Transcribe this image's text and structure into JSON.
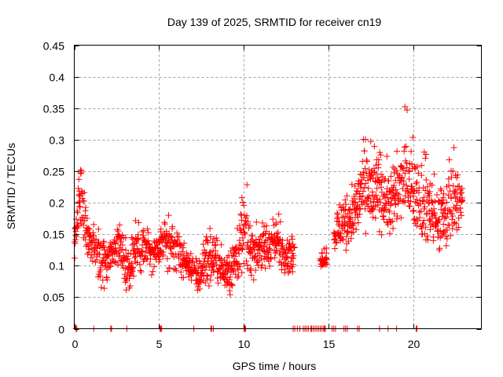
{
  "chart_data": {
    "type": "scatter",
    "title": "Day 139 of 2025, SRMTID for receiver cn19",
    "xlabel": "GPS time / hours",
    "ylabel": "SRMTID / TECUs",
    "xlim": [
      0,
      24
    ],
    "ylim": [
      0,
      0.45
    ],
    "xticks": [
      0,
      5,
      10,
      15,
      20
    ],
    "xtick_labels": [
      "0",
      "5",
      "10",
      "15",
      "20"
    ],
    "yticks": [
      0,
      0.05,
      0.1,
      0.15,
      0.2,
      0.25,
      0.3,
      0.35,
      0.4,
      0.45
    ],
    "ytick_labels": [
      "0",
      "0.05",
      "0.1",
      "0.15",
      "0.2",
      "0.25",
      "0.3",
      "0.35",
      "0.4",
      "0.45"
    ],
    "grid": true,
    "marker": "+",
    "color": "#ff0000",
    "series": [
      {
        "name": "SRMTID",
        "envelope": [
          {
            "x": 0.0,
            "lo": 0.1,
            "hi": 0.16,
            "peak": 0.13
          },
          {
            "x": 0.3,
            "lo": 0.12,
            "hi": 0.3,
            "peak": 0.22
          },
          {
            "x": 0.7,
            "lo": 0.09,
            "hi": 0.2,
            "peak": 0.15
          },
          {
            "x": 1.2,
            "lo": 0.08,
            "hi": 0.17,
            "peak": 0.13
          },
          {
            "x": 1.7,
            "lo": 0.05,
            "hi": 0.16,
            "peak": 0.11
          },
          {
            "x": 2.2,
            "lo": 0.07,
            "hi": 0.16,
            "peak": 0.12
          },
          {
            "x": 2.6,
            "lo": 0.08,
            "hi": 0.2,
            "peak": 0.14
          },
          {
            "x": 3.1,
            "lo": 0.04,
            "hi": 0.14,
            "peak": 0.1
          },
          {
            "x": 3.6,
            "lo": 0.07,
            "hi": 0.19,
            "peak": 0.13
          },
          {
            "x": 4.2,
            "lo": 0.08,
            "hi": 0.19,
            "peak": 0.13
          },
          {
            "x": 4.7,
            "lo": 0.06,
            "hi": 0.15,
            "peak": 0.11
          },
          {
            "x": 5.2,
            "lo": 0.09,
            "hi": 0.19,
            "peak": 0.14
          },
          {
            "x": 5.7,
            "lo": 0.08,
            "hi": 0.2,
            "peak": 0.14
          },
          {
            "x": 6.2,
            "lo": 0.07,
            "hi": 0.16,
            "peak": 0.12
          },
          {
            "x": 6.7,
            "lo": 0.08,
            "hi": 0.13,
            "peak": 0.1
          },
          {
            "x": 7.3,
            "lo": 0.04,
            "hi": 0.12,
            "peak": 0.08
          },
          {
            "x": 7.8,
            "lo": 0.06,
            "hi": 0.18,
            "peak": 0.11
          },
          {
            "x": 8.3,
            "lo": 0.06,
            "hi": 0.16,
            "peak": 0.11
          },
          {
            "x": 8.8,
            "lo": 0.04,
            "hi": 0.14,
            "peak": 0.09
          },
          {
            "x": 9.3,
            "lo": 0.03,
            "hi": 0.16,
            "peak": 0.1
          },
          {
            "x": 9.7,
            "lo": 0.06,
            "hi": 0.2,
            "peak": 0.12
          },
          {
            "x": 10.0,
            "lo": 0.08,
            "hi": 0.27,
            "peak": 0.15
          },
          {
            "x": 10.5,
            "lo": 0.06,
            "hi": 0.17,
            "peak": 0.12
          },
          {
            "x": 11.0,
            "lo": 0.07,
            "hi": 0.2,
            "peak": 0.13
          },
          {
            "x": 11.5,
            "lo": 0.08,
            "hi": 0.18,
            "peak": 0.13
          },
          {
            "x": 12.0,
            "lo": 0.09,
            "hi": 0.2,
            "peak": 0.14
          },
          {
            "x": 12.4,
            "lo": 0.07,
            "hi": 0.16,
            "peak": 0.12
          },
          {
            "x": 12.9,
            "lo": 0.08,
            "hi": 0.15,
            "peak": 0.12
          },
          {
            "x": 13.5,
            "lo": 0.1,
            "hi": 0.14,
            "peak": 0.12
          },
          {
            "x": 14.8,
            "lo": 0.09,
            "hi": 0.14,
            "peak": 0.11
          },
          {
            "x": 15.5,
            "lo": 0.11,
            "hi": 0.21,
            "peak": 0.16
          },
          {
            "x": 16.0,
            "lo": 0.11,
            "hi": 0.24,
            "peak": 0.17
          },
          {
            "x": 16.6,
            "lo": 0.13,
            "hi": 0.26,
            "peak": 0.19
          },
          {
            "x": 17.1,
            "lo": 0.15,
            "hi": 0.34,
            "peak": 0.23
          },
          {
            "x": 17.6,
            "lo": 0.11,
            "hi": 0.3,
            "peak": 0.22
          },
          {
            "x": 18.1,
            "lo": 0.13,
            "hi": 0.3,
            "peak": 0.22
          },
          {
            "x": 18.6,
            "lo": 0.12,
            "hi": 0.27,
            "peak": 0.2
          },
          {
            "x": 19.2,
            "lo": 0.14,
            "hi": 0.34,
            "peak": 0.22
          },
          {
            "x": 19.6,
            "lo": 0.17,
            "hi": 0.41,
            "peak": 0.23
          },
          {
            "x": 20.1,
            "lo": 0.14,
            "hi": 0.29,
            "peak": 0.22
          },
          {
            "x": 20.4,
            "lo": 0.09,
            "hi": 0.37,
            "peak": 0.19
          },
          {
            "x": 20.9,
            "lo": 0.12,
            "hi": 0.26,
            "peak": 0.19
          },
          {
            "x": 21.4,
            "lo": 0.1,
            "hi": 0.25,
            "peak": 0.17
          },
          {
            "x": 21.9,
            "lo": 0.08,
            "hi": 0.28,
            "peak": 0.18
          },
          {
            "x": 22.4,
            "lo": 0.13,
            "hi": 0.36,
            "peak": 0.21
          },
          {
            "x": 22.8,
            "lo": 0.15,
            "hi": 0.25,
            "peak": 0.2
          }
        ],
        "gaps": [
          [
            13.0,
            14.5
          ],
          [
            14.9,
            15.3
          ]
        ],
        "zero_points": [
          0.1,
          0.12,
          0.15,
          1.15,
          2.15,
          2.2,
          3.1,
          5.05,
          5.1,
          5.15,
          7.05,
          8.05,
          8.1,
          8.2,
          10.0,
          10.05,
          10.1,
          12.9,
          13.0,
          13.15,
          13.3,
          13.5,
          13.6,
          13.7,
          13.8,
          13.95,
          14.0,
          14.1,
          14.2,
          14.3,
          14.4,
          14.5,
          14.6,
          14.7,
          14.75,
          14.8,
          15.2,
          15.3,
          15.4,
          15.9,
          16.0,
          16.1,
          16.7,
          16.8,
          18.0,
          18.5,
          19.0,
          20.15,
          20.2
        ]
      }
    ],
    "legend": "none"
  }
}
